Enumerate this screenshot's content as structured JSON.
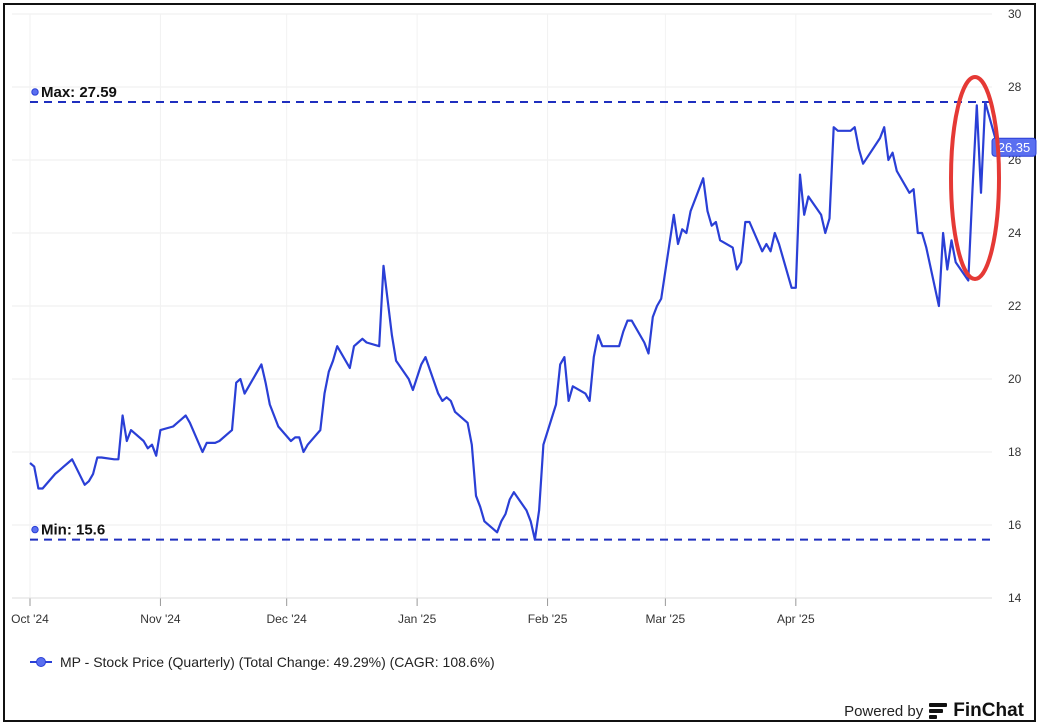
{
  "chart_data": {
    "type": "line",
    "title": "",
    "xlabel": "",
    "ylabel": "",
    "ylim": [
      14,
      30
    ],
    "y_ticks": [
      "14",
      "16",
      "18",
      "20",
      "22",
      "24",
      "26",
      "28",
      "30"
    ],
    "x_ticks": [
      "Oct '24",
      "Nov '24",
      "Dec '24",
      "Jan '25",
      "Feb '25",
      "Mar '25",
      "Apr '25"
    ],
    "grid": true,
    "legend_position": "bottom-left",
    "series": [
      {
        "name": "MP - Stock Price (Quarterly) (Total Change: 49.29%) (CAGR: 108.6%)",
        "color": "#2a3fd6",
        "points": [
          [
            "2024-10-01",
            17.7
          ],
          [
            "2024-10-02",
            17.6
          ],
          [
            "2024-10-03",
            17.0
          ],
          [
            "2024-10-04",
            17.0
          ],
          [
            "2024-10-07",
            17.4
          ],
          [
            "2024-10-08",
            17.5
          ],
          [
            "2024-10-09",
            17.6
          ],
          [
            "2024-10-10",
            17.7
          ],
          [
            "2024-10-11",
            17.8
          ],
          [
            "2024-10-14",
            17.1
          ],
          [
            "2024-10-15",
            17.2
          ],
          [
            "2024-10-16",
            17.4
          ],
          [
            "2024-10-17",
            17.85
          ],
          [
            "2024-10-18",
            17.85
          ],
          [
            "2024-10-21",
            17.8
          ],
          [
            "2024-10-22",
            17.8
          ],
          [
            "2024-10-23",
            19.0
          ],
          [
            "2024-10-24",
            18.3
          ],
          [
            "2024-10-25",
            18.6
          ],
          [
            "2024-10-28",
            18.3
          ],
          [
            "2024-10-29",
            18.1
          ],
          [
            "2024-10-30",
            18.2
          ],
          [
            "2024-10-31",
            17.9
          ],
          [
            "2024-11-01",
            18.6
          ],
          [
            "2024-11-04",
            18.7
          ],
          [
            "2024-11-05",
            18.8
          ],
          [
            "2024-11-06",
            18.9
          ],
          [
            "2024-11-07",
            19.0
          ],
          [
            "2024-11-08",
            18.8
          ],
          [
            "2024-11-11",
            18.0
          ],
          [
            "2024-11-12",
            18.25
          ],
          [
            "2024-11-13",
            18.25
          ],
          [
            "2024-11-14",
            18.25
          ],
          [
            "2024-11-15",
            18.3
          ],
          [
            "2024-11-18",
            18.6
          ],
          [
            "2024-11-19",
            19.9
          ],
          [
            "2024-11-20",
            20.0
          ],
          [
            "2024-11-21",
            19.6
          ],
          [
            "2024-11-22",
            19.8
          ],
          [
            "2024-11-25",
            20.4
          ],
          [
            "2024-11-26",
            19.9
          ],
          [
            "2024-11-27",
            19.3
          ],
          [
            "2024-11-29",
            18.7
          ],
          [
            "2024-12-02",
            18.3
          ],
          [
            "2024-12-03",
            18.4
          ],
          [
            "2024-12-04",
            18.4
          ],
          [
            "2024-12-05",
            18.0
          ],
          [
            "2024-12-06",
            18.2
          ],
          [
            "2024-12-09",
            18.6
          ],
          [
            "2024-12-10",
            19.6
          ],
          [
            "2024-12-11",
            20.2
          ],
          [
            "2024-12-12",
            20.5
          ],
          [
            "2024-12-13",
            20.9
          ],
          [
            "2024-12-16",
            20.3
          ],
          [
            "2024-12-17",
            20.9
          ],
          [
            "2024-12-18",
            21.0
          ],
          [
            "2024-12-19",
            21.1
          ],
          [
            "2024-12-20",
            21.0
          ],
          [
            "2024-12-23",
            20.9
          ],
          [
            "2024-12-24",
            23.1
          ],
          [
            "2024-12-26",
            21.2
          ],
          [
            "2024-12-27",
            20.5
          ],
          [
            "2024-12-30",
            20.0
          ],
          [
            "2024-12-31",
            19.7
          ],
          [
            "2025-01-02",
            20.4
          ],
          [
            "2025-01-03",
            20.6
          ],
          [
            "2025-01-06",
            19.6
          ],
          [
            "2025-01-07",
            19.4
          ],
          [
            "2025-01-08",
            19.5
          ],
          [
            "2025-01-09",
            19.4
          ],
          [
            "2025-01-10",
            19.1
          ],
          [
            "2025-01-13",
            18.8
          ],
          [
            "2025-01-14",
            18.2
          ],
          [
            "2025-01-15",
            16.8
          ],
          [
            "2025-01-16",
            16.5
          ],
          [
            "2025-01-17",
            16.1
          ],
          [
            "2025-01-20",
            15.8
          ],
          [
            "2025-01-21",
            16.1
          ],
          [
            "2025-01-22",
            16.3
          ],
          [
            "2025-01-23",
            16.7
          ],
          [
            "2025-01-24",
            16.9
          ],
          [
            "2025-01-27",
            16.4
          ],
          [
            "2025-01-28",
            16.1
          ],
          [
            "2025-01-29",
            15.6
          ],
          [
            "2025-01-30",
            16.4
          ],
          [
            "2025-01-31",
            18.2
          ],
          [
            "2025-02-03",
            19.3
          ],
          [
            "2025-02-04",
            20.4
          ],
          [
            "2025-02-05",
            20.6
          ],
          [
            "2025-02-06",
            19.4
          ],
          [
            "2025-02-07",
            19.8
          ],
          [
            "2025-02-10",
            19.6
          ],
          [
            "2025-02-11",
            19.4
          ],
          [
            "2025-02-12",
            20.6
          ],
          [
            "2025-02-13",
            21.2
          ],
          [
            "2025-02-14",
            20.9
          ],
          [
            "2025-02-18",
            20.9
          ],
          [
            "2025-02-19",
            21.3
          ],
          [
            "2025-02-20",
            21.6
          ],
          [
            "2025-02-21",
            21.6
          ],
          [
            "2025-02-24",
            21.0
          ],
          [
            "2025-02-25",
            20.7
          ],
          [
            "2025-02-26",
            21.7
          ],
          [
            "2025-02-27",
            22.0
          ],
          [
            "2025-02-28",
            22.2
          ],
          [
            "2025-03-03",
            24.5
          ],
          [
            "2025-03-04",
            23.7
          ],
          [
            "2025-03-05",
            24.1
          ],
          [
            "2025-03-06",
            24.0
          ],
          [
            "2025-03-07",
            24.6
          ],
          [
            "2025-03-10",
            25.5
          ],
          [
            "2025-03-11",
            24.6
          ],
          [
            "2025-03-12",
            24.2
          ],
          [
            "2025-03-13",
            24.3
          ],
          [
            "2025-03-14",
            23.8
          ],
          [
            "2025-03-17",
            23.6
          ],
          [
            "2025-03-18",
            23.0
          ],
          [
            "2025-03-19",
            23.2
          ],
          [
            "2025-03-20",
            24.3
          ],
          [
            "2025-03-21",
            24.3
          ],
          [
            "2025-03-24",
            23.5
          ],
          [
            "2025-03-25",
            23.7
          ],
          [
            "2025-03-26",
            23.5
          ],
          [
            "2025-03-27",
            24.0
          ],
          [
            "2025-03-28",
            23.7
          ],
          [
            "2025-03-31",
            22.5
          ],
          [
            "2025-04-01",
            22.5
          ],
          [
            "2025-04-02",
            25.6
          ],
          [
            "2025-04-03",
            24.5
          ],
          [
            "2025-04-04",
            25.0
          ],
          [
            "2025-04-07",
            24.5
          ],
          [
            "2025-04-08",
            24.0
          ],
          [
            "2025-04-09",
            24.4
          ],
          [
            "2025-04-10",
            26.9
          ],
          [
            "2025-04-11",
            26.8
          ],
          [
            "2025-04-14",
            26.8
          ],
          [
            "2025-04-15",
            26.9
          ],
          [
            "2025-04-16",
            26.3
          ],
          [
            "2025-04-17",
            25.9
          ],
          [
            "2025-04-21",
            26.6
          ],
          [
            "2025-04-22",
            26.9
          ],
          [
            "2025-04-23",
            26.0
          ],
          [
            "2025-04-24",
            26.2
          ],
          [
            "2025-04-25",
            25.7
          ],
          [
            "2025-04-28",
            25.1
          ],
          [
            "2025-04-29",
            25.2
          ],
          [
            "2025-04-30",
            24.0
          ],
          [
            "2025-05-01",
            24.0
          ],
          [
            "2025-05-02",
            23.6
          ],
          [
            "2025-05-05",
            22.0
          ],
          [
            "2025-05-06",
            24.0
          ],
          [
            "2025-05-07",
            23.0
          ],
          [
            "2025-05-08",
            23.8
          ],
          [
            "2025-05-09",
            23.2
          ],
          [
            "2025-05-12",
            22.7
          ],
          [
            "2025-05-13",
            25.2
          ],
          [
            "2025-05-14",
            27.5
          ],
          [
            "2025-05-15",
            25.1
          ],
          [
            "2025-05-16",
            27.59
          ],
          [
            "2025-05-19",
            26.35
          ]
        ],
        "last_value_label": "26.35"
      }
    ],
    "reference_lines": [
      {
        "label": "Max: 27.59",
        "value": 27.59,
        "style": "dashed",
        "color": "#1f2fbf"
      },
      {
        "label": "Min: 15.6",
        "value": 15.6,
        "style": "dashed",
        "color": "#1f2fbf"
      }
    ],
    "annotations": [
      {
        "type": "ellipse",
        "color": "#e53935",
        "around": "2025-05 peak"
      }
    ]
  },
  "branding": {
    "powered_by": "Powered by",
    "name": "FinChat"
  }
}
